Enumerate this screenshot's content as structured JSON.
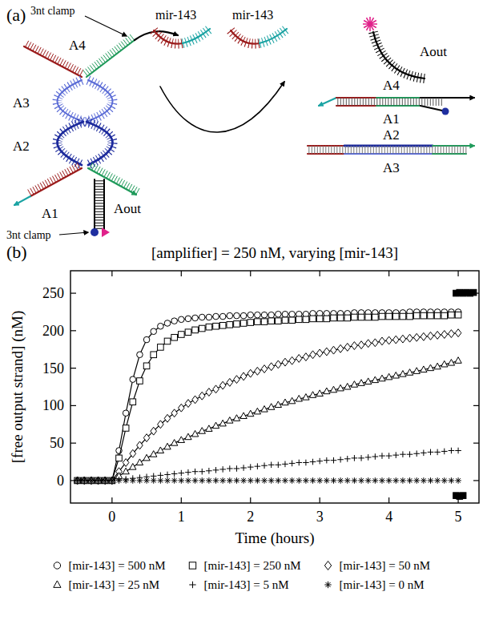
{
  "diagram": {
    "panel_label": "(a)",
    "complex": {
      "clamp_labels": [
        "3nt clamp",
        "3nt clamp"
      ],
      "strands": [
        "A4",
        "A3",
        "A2",
        "A1"
      ],
      "reporter": "Aout"
    },
    "inputs": [
      "mir-143",
      "mir-143"
    ],
    "products": {
      "reporter": "Aout",
      "duplex_1": [
        "A4",
        "A1"
      ],
      "duplex_2": [
        "A2",
        "A3"
      ]
    }
  },
  "chart_data": {
    "type": "scatter",
    "panel_label": "(b)",
    "title": "[amplifier] = 250 nM, varying [mir-143]",
    "x_label": "Time (hours)",
    "y_label": "[free output strand] (nM)",
    "xlim": [
      -0.6,
      5.3
    ],
    "ylim": [
      -30,
      280
    ],
    "xticks": [
      0,
      1,
      2,
      3,
      4,
      5
    ],
    "yticks": [
      0,
      50,
      100,
      150,
      200,
      250
    ],
    "grid": false,
    "legend": "bottom",
    "x": [
      -0.5,
      -0.4,
      -0.3,
      -0.2,
      -0.1,
      0,
      0.1,
      0.2,
      0.3,
      0.4,
      0.5,
      0.6,
      0.7,
      0.8,
      0.9,
      1,
      1.1,
      1.2,
      1.3,
      1.4,
      1.5,
      1.6,
      1.7,
      1.8,
      1.9,
      2,
      2.1,
      2.2,
      2.3,
      2.4,
      2.5,
      2.6,
      2.7,
      2.8,
      2.9,
      3,
      3.1,
      3.2,
      3.3,
      3.4,
      3.5,
      3.6,
      3.7,
      3.8,
      3.9,
      4,
      4.1,
      4.2,
      4.3,
      4.4,
      4.5,
      4.6,
      4.7,
      4.8,
      4.9,
      5
    ],
    "series": [
      {
        "name": "[mir-143] = 500 nM",
        "color": "#000000",
        "marker": "circle",
        "line_style": "solid",
        "values": [
          0,
          0,
          0,
          0,
          0,
          0,
          40,
          90,
          135,
          168,
          188,
          199,
          206,
          210,
          213,
          215,
          216,
          217,
          218,
          218,
          219,
          219,
          220,
          220,
          220,
          221,
          221,
          221,
          221,
          222,
          222,
          222,
          222,
          222,
          223,
          223,
          223,
          223,
          223,
          223,
          224,
          224,
          224,
          224,
          224,
          224,
          224,
          224,
          225,
          225,
          225,
          225,
          225,
          225,
          225,
          225
        ]
      },
      {
        "name": "[mir-143] = 250 nM",
        "color": "#000000",
        "marker": "square",
        "line_style": "solid",
        "values": [
          0,
          0,
          0,
          0,
          0,
          0,
          30,
          70,
          105,
          133,
          153,
          168,
          178,
          186,
          191,
          195,
          198,
          201,
          203,
          205,
          206,
          207,
          208,
          209,
          210,
          211,
          212,
          212,
          213,
          213,
          214,
          214,
          215,
          215,
          216,
          216,
          216,
          217,
          217,
          217,
          218,
          218,
          218,
          218,
          219,
          219,
          219,
          219,
          219,
          220,
          220,
          220,
          220,
          220,
          221,
          221
        ]
      },
      {
        "name": "[mir-143] = 50 nM",
        "color": "#000000",
        "marker": "diamond",
        "line_style": "solid",
        "values": [
          0,
          0,
          0,
          0,
          0,
          0,
          12,
          24,
          36,
          47,
          57,
          66,
          75,
          83,
          90,
          97,
          103,
          108,
          113,
          118,
          122,
          127,
          131,
          135,
          139,
          143,
          146,
          149,
          152,
          155,
          158,
          160,
          163,
          165,
          168,
          170,
          172,
          174,
          176,
          178,
          180,
          181,
          183,
          184,
          186,
          187,
          188,
          189,
          190,
          191,
          192,
          193,
          194,
          195,
          196,
          197
        ]
      },
      {
        "name": "[mir-143] = 25 nM",
        "color": "#000000",
        "marker": "triangle",
        "line_style": "solid",
        "values": [
          0,
          0,
          0,
          0,
          0,
          0,
          6,
          12,
          18,
          24,
          30,
          35,
          40,
          45,
          50,
          54,
          58,
          62,
          66,
          69,
          73,
          76,
          80,
          83,
          86,
          89,
          92,
          95,
          98,
          101,
          104,
          106,
          109,
          111,
          114,
          116,
          119,
          121,
          123,
          125,
          128,
          130,
          132,
          134,
          136,
          138,
          140,
          142,
          144,
          146,
          148,
          150,
          152,
          155,
          157,
          160
        ]
      },
      {
        "name": "[mir-143] = 5 nM",
        "color": "#000000",
        "marker": "plus",
        "line_style": "none",
        "values": [
          0,
          0,
          0,
          0,
          0,
          0,
          1,
          2,
          3,
          4,
          5,
          6,
          7,
          8,
          9,
          10,
          11,
          12,
          12,
          13,
          14,
          15,
          16,
          16,
          17,
          18,
          19,
          20,
          21,
          21,
          22,
          23,
          24,
          24,
          25,
          26,
          27,
          27,
          28,
          29,
          30,
          30,
          31,
          32,
          33,
          33,
          34,
          35,
          35,
          36,
          37,
          38,
          38,
          39,
          40,
          40
        ]
      },
      {
        "name": "[mir-143] = 0 nM",
        "color": "#000000",
        "marker": "star",
        "line_style": "none",
        "values": [
          0,
          0,
          0,
          0,
          0,
          0,
          0,
          0,
          0,
          0,
          0,
          0,
          0,
          0,
          0,
          0,
          0,
          0,
          0,
          0,
          0,
          0,
          0,
          0,
          0,
          0,
          0,
          0,
          0,
          0,
          0,
          0,
          0,
          0,
          0,
          0,
          0,
          0,
          0,
          0,
          0,
          0,
          0,
          0,
          0,
          0,
          0,
          0,
          0,
          0,
          0,
          0,
          0,
          0,
          0,
          0
        ]
      },
      {
        "color": "#000000",
        "marker": "filled_square",
        "line_style": "none",
        "x": [
          4.97,
          5.02,
          5.07,
          5.12,
          5.17,
          5.22,
          4.97,
          5.02,
          5.07
        ],
        "values": [
          250,
          251,
          250,
          251,
          250,
          251,
          -20,
          -21,
          -20
        ]
      }
    ]
  }
}
